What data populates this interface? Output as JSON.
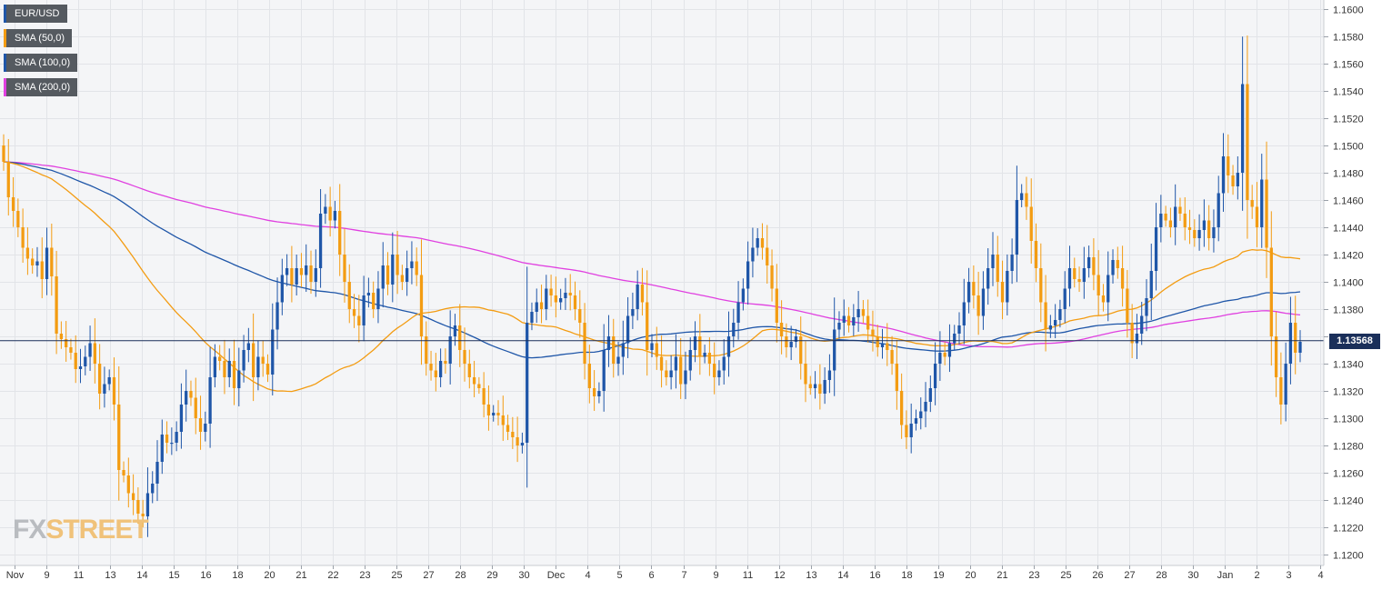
{
  "legend": [
    {
      "label": "EUR/USD",
      "color": "#1f56a8"
    },
    {
      "label": "SMA (50,0)",
      "color": "#f39c12"
    },
    {
      "label": "SMA (100,0)",
      "color": "#1f56a8"
    },
    {
      "label": "SMA (200,0)",
      "color": "#e040e0"
    }
  ],
  "current_price_label": "1.13568",
  "watermark": {
    "fx": "FX",
    "street": "STREET"
  },
  "chart_data": {
    "type": "candlestick",
    "title": "",
    "symbol": "EUR/USD",
    "timeframe": "4h",
    "ylim": [
      1.12,
      1.16
    ],
    "ytick_step": 0.002,
    "y_ticks": [
      "1.1200",
      "1.1220",
      "1.1240",
      "1.1260",
      "1.1280",
      "1.1300",
      "1.1320",
      "1.1340",
      "1.1360",
      "1.1380",
      "1.1400",
      "1.1420",
      "1.1440",
      "1.1460",
      "1.1480",
      "1.1500",
      "1.1520",
      "1.1540",
      "1.1560",
      "1.1580",
      "1.1600"
    ],
    "x_ticks": [
      "Nov",
      "9",
      "11",
      "13",
      "14",
      "15",
      "16",
      "18",
      "20",
      "21",
      "22",
      "23",
      "25",
      "27",
      "28",
      "29",
      "30",
      "Dec",
      "4",
      "5",
      "6",
      "7",
      "9",
      "11",
      "12",
      "13",
      "14",
      "16",
      "18",
      "19",
      "20",
      "21",
      "23",
      "25",
      "26",
      "27",
      "28",
      "30",
      "Jan",
      "2",
      "3",
      "4"
    ],
    "current_price": 1.13568,
    "grid": true,
    "legend_position": "top-left",
    "colors": {
      "up": "#1f56a8",
      "down": "#f39c12",
      "sma50": "#f39c12",
      "sma100": "#1f56a8",
      "sma200": "#e040e0",
      "current_line": "#1a2f5a"
    },
    "closes": [
      1.1488,
      1.1462,
      1.1452,
      1.144,
      1.1425,
      1.1417,
      1.1412,
      1.1415,
      1.1402,
      1.1425,
      1.1404,
      1.1362,
      1.1358,
      1.1352,
      1.1348,
      1.1336,
      1.1338,
      1.1345,
      1.1355,
      1.134,
      1.1318,
      1.1325,
      1.133,
      1.131,
      1.1262,
      1.1258,
      1.1245,
      1.124,
      1.123,
      1.1228,
      1.1245,
      1.1252,
      1.1268,
      1.1288,
      1.1282,
      1.1282,
      1.129,
      1.131,
      1.132,
      1.1315,
      1.13,
      1.129,
      1.1296,
      1.133,
      1.1345,
      1.1342,
      1.133,
      1.1342,
      1.1322,
      1.1335,
      1.135,
      1.1355,
      1.133,
      1.1345,
      1.134,
      1.1332,
      1.1365,
      1.1385,
      1.1405,
      1.141,
      1.1398,
      1.141,
      1.1405,
      1.1412,
      1.14,
      1.141,
      1.145,
      1.1455,
      1.1445,
      1.1452,
      1.142,
      1.14,
      1.138,
      1.1375,
      1.1368,
      1.139,
      1.1392,
      1.138,
      1.1395,
      1.1412,
      1.1398,
      1.142,
      1.1405,
      1.14,
      1.141,
      1.1415,
      1.1405,
      1.136,
      1.134,
      1.1335,
      1.133,
      1.1342,
      1.134,
      1.136,
      1.1368,
      1.135,
      1.134,
      1.133,
      1.1325,
      1.1322,
      1.131,
      1.1302,
      1.1304,
      1.1302,
      1.1295,
      1.129,
      1.1286,
      1.128,
      1.1282,
      1.137,
      1.1378,
      1.1385,
      1.138,
      1.1395,
      1.139,
      1.1385,
      1.1388,
      1.1392,
      1.139,
      1.138,
      1.137,
      1.134,
      1.1322,
      1.1316,
      1.132,
      1.135,
      1.136,
      1.134,
      1.1345,
      1.1355,
      1.1375,
      1.138,
      1.1398,
      1.1385,
      1.135,
      1.1355,
      1.1345,
      1.1335,
      1.133,
      1.1335,
      1.1345,
      1.1325,
      1.1335,
      1.135,
      1.136,
      1.1345,
      1.1348,
      1.134,
      1.133,
      1.1335,
      1.1345,
      1.136,
      1.137,
      1.1385,
      1.1395,
      1.1415,
      1.1425,
      1.1432,
      1.1425,
      1.1412,
      1.1395,
      1.137,
      1.136,
      1.1352,
      1.1356,
      1.136,
      1.134,
      1.1325,
      1.1322,
      1.1325,
      1.1318,
      1.1328,
      1.1335,
      1.1365,
      1.137,
      1.1375,
      1.1368,
      1.1374,
      1.138,
      1.1375,
      1.1365,
      1.136,
      1.1352,
      1.1355,
      1.135,
      1.134,
      1.132,
      1.1295,
      1.1286,
      1.1296,
      1.13,
      1.1305,
      1.1312,
      1.1322,
      1.134,
      1.1348,
      1.1345,
      1.1355,
      1.1362,
      1.1368,
      1.1385,
      1.14,
      1.139,
      1.1375,
      1.1395,
      1.141,
      1.142,
      1.14,
      1.1385,
      1.1408,
      1.142,
      1.146,
      1.1465,
      1.1455,
      1.143,
      1.141,
      1.1385,
      1.1365,
      1.1368,
      1.1372,
      1.138,
      1.1395,
      1.141,
      1.1402,
      1.14,
      1.141,
      1.1418,
      1.1405,
      1.139,
      1.1385,
      1.1405,
      1.1416,
      1.141,
      1.1395,
      1.137,
      1.1355,
      1.1362,
      1.1375,
      1.1388,
      1.1408,
      1.144,
      1.145,
      1.1445,
      1.144,
      1.1455,
      1.145,
      1.144,
      1.1438,
      1.1432,
      1.1438,
      1.1445,
      1.1432,
      1.144,
      1.1465,
      1.1492,
      1.1478,
      1.147,
      1.148,
      1.1545,
      1.146,
      1.1455,
      1.144,
      1.1475,
      1.1425,
      1.136,
      1.133,
      1.131,
      1.134,
      1.137,
      1.1348,
      1.1356
    ]
  }
}
